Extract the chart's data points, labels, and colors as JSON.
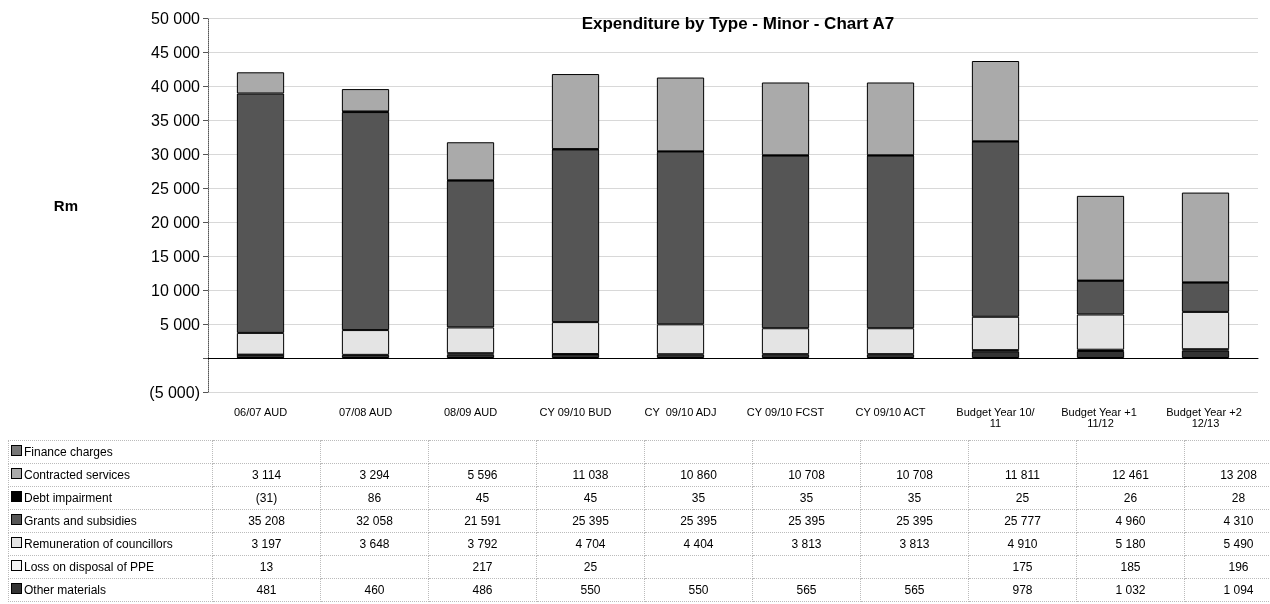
{
  "chart_data": {
    "type": "bar",
    "title": "Expenditure by Type - Minor - Chart A7",
    "ylabel": "Rm",
    "stacked": true,
    "grid": "y",
    "legend": "bottom",
    "categories": [
      "06/07 AUD",
      "07/08 AUD",
      "08/09 AUD",
      "CY 09/10 BUD",
      "CY  09/10 ADJ",
      "CY 09/10 FCST",
      "CY 09/10 ACT",
      "Budget Year 10/11",
      "Budget Year +1 11/12",
      "Budget Year +2 12/13"
    ],
    "ylim": [
      -5000,
      50000
    ],
    "yticks": [
      {
        "value": -5000,
        "label": "(5 000)"
      },
      {
        "value": 0,
        "label": null
      },
      {
        "value": 5000,
        "label": "5 000"
      },
      {
        "value": 10000,
        "label": "10 000"
      },
      {
        "value": 15000,
        "label": "15 000"
      },
      {
        "value": 20000,
        "label": "20 000"
      },
      {
        "value": 25000,
        "label": "25 000"
      },
      {
        "value": 30000,
        "label": "30 000"
      },
      {
        "value": 35000,
        "label": "35 000"
      },
      {
        "value": 40000,
        "label": "40 000"
      },
      {
        "value": 45000,
        "label": "45 000"
      },
      {
        "value": 50000,
        "label": "50 000"
      }
    ],
    "series": [
      {
        "name": "Other materials",
        "color": "#333333",
        "values": [
          481,
          460,
          486,
          550,
          550,
          565,
          565,
          978,
          1032,
          1094
        ],
        "value_labels": [
          "481",
          "460",
          "486",
          "550",
          "550",
          "565",
          "565",
          "978",
          "1 032",
          "1 094"
        ]
      },
      {
        "name": "Loss on disposal of PPE",
        "color": "#f4f4f4",
        "values": [
          13,
          null,
          217,
          25,
          null,
          null,
          null,
          175,
          185,
          196
        ],
        "value_labels": [
          "13",
          null,
          "217",
          "25",
          null,
          null,
          null,
          "175",
          "185",
          "196"
        ]
      },
      {
        "name": "Remuneration of councillors",
        "color": "#e4e4e4",
        "values": [
          3197,
          3648,
          3792,
          4704,
          4404,
          3813,
          3813,
          4910,
          5180,
          5490
        ],
        "value_labels": [
          "3 197",
          "3 648",
          "3 792",
          "4 704",
          "4 404",
          "3 813",
          "3 813",
          "4 910",
          "5 180",
          "5 490"
        ]
      },
      {
        "name": "Grants and subsidies",
        "color": "#555555",
        "values": [
          35208,
          32058,
          21591,
          25395,
          25395,
          25395,
          25395,
          25777,
          4960,
          4310
        ],
        "value_labels": [
          "35 208",
          "32 058",
          "21 591",
          "25 395",
          "25 395",
          "25 395",
          "25 395",
          "25 777",
          "4 960",
          "4 310"
        ]
      },
      {
        "name": "Debt impairment",
        "color": "#000000",
        "values": [
          -31,
          86,
          45,
          45,
          35,
          35,
          35,
          25,
          26,
          28
        ],
        "value_labels": [
          "(31)",
          "86",
          "45",
          "45",
          "35",
          "35",
          "35",
          "25",
          "26",
          "28"
        ]
      },
      {
        "name": "Contracted services",
        "color": "#aaaaaa",
        "values": [
          3114,
          3294,
          5596,
          11038,
          10860,
          10708,
          10708,
          11811,
          12461,
          13208
        ],
        "value_labels": [
          "3 114",
          "3 294",
          "5 596",
          "11 038",
          "10 860",
          "10 708",
          "10 708",
          "11 811",
          "12 461",
          "13 208"
        ]
      },
      {
        "name": "Finance charges",
        "color": "#777777",
        "values": [
          null,
          null,
          null,
          null,
          null,
          null,
          null,
          null,
          null,
          null
        ],
        "value_labels": [
          null,
          null,
          null,
          null,
          null,
          null,
          null,
          null,
          null,
          null
        ]
      }
    ]
  }
}
